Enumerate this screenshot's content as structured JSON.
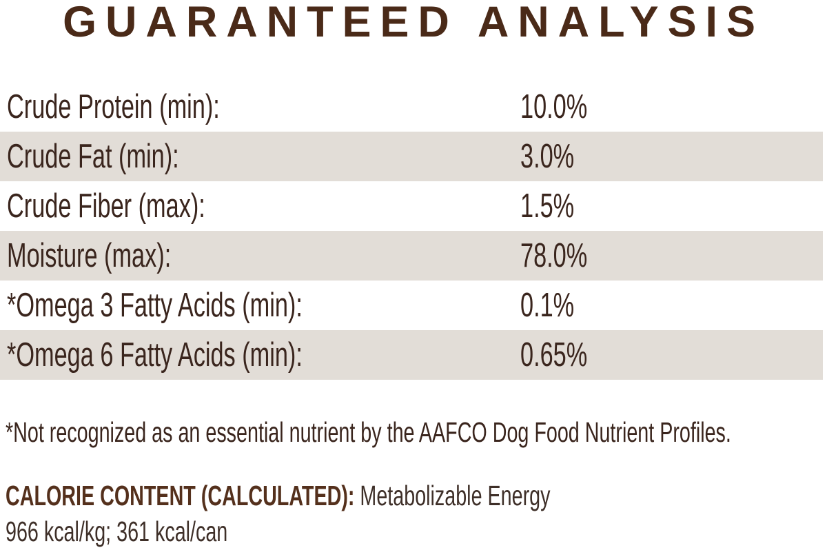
{
  "title": "GUARANTEED ANALYSIS",
  "table": {
    "rows": [
      {
        "label": "Crude Protein (min):",
        "value": "10.0%"
      },
      {
        "label": "Crude Fat (min):",
        "value": "3.0%"
      },
      {
        "label": "Crude Fiber (max):",
        "value": "1.5%"
      },
      {
        "label": "Moisture (max):",
        "value": "78.0%"
      },
      {
        "label": "*Omega 3 Fatty Acids (min):",
        "value": "0.1%"
      },
      {
        "label": "*Omega 6 Fatty Acids (min):",
        "value": "0.65%"
      }
    ]
  },
  "footnote": "*Not recognized as an essential nutrient by the AAFCO Dog Food Nutrient Profiles.",
  "calorie": {
    "heading": "CALORIE CONTENT (CALCULATED):",
    "subtitle": "Metabolizable Energy",
    "values": "966 kcal/kg; 361 kcal/can"
  },
  "colors": {
    "stripe": "#e2ddd7",
    "title_brown": "#4a2a18",
    "text_brown": "#3a251d",
    "calorie_heading_brown": "#54301c"
  }
}
